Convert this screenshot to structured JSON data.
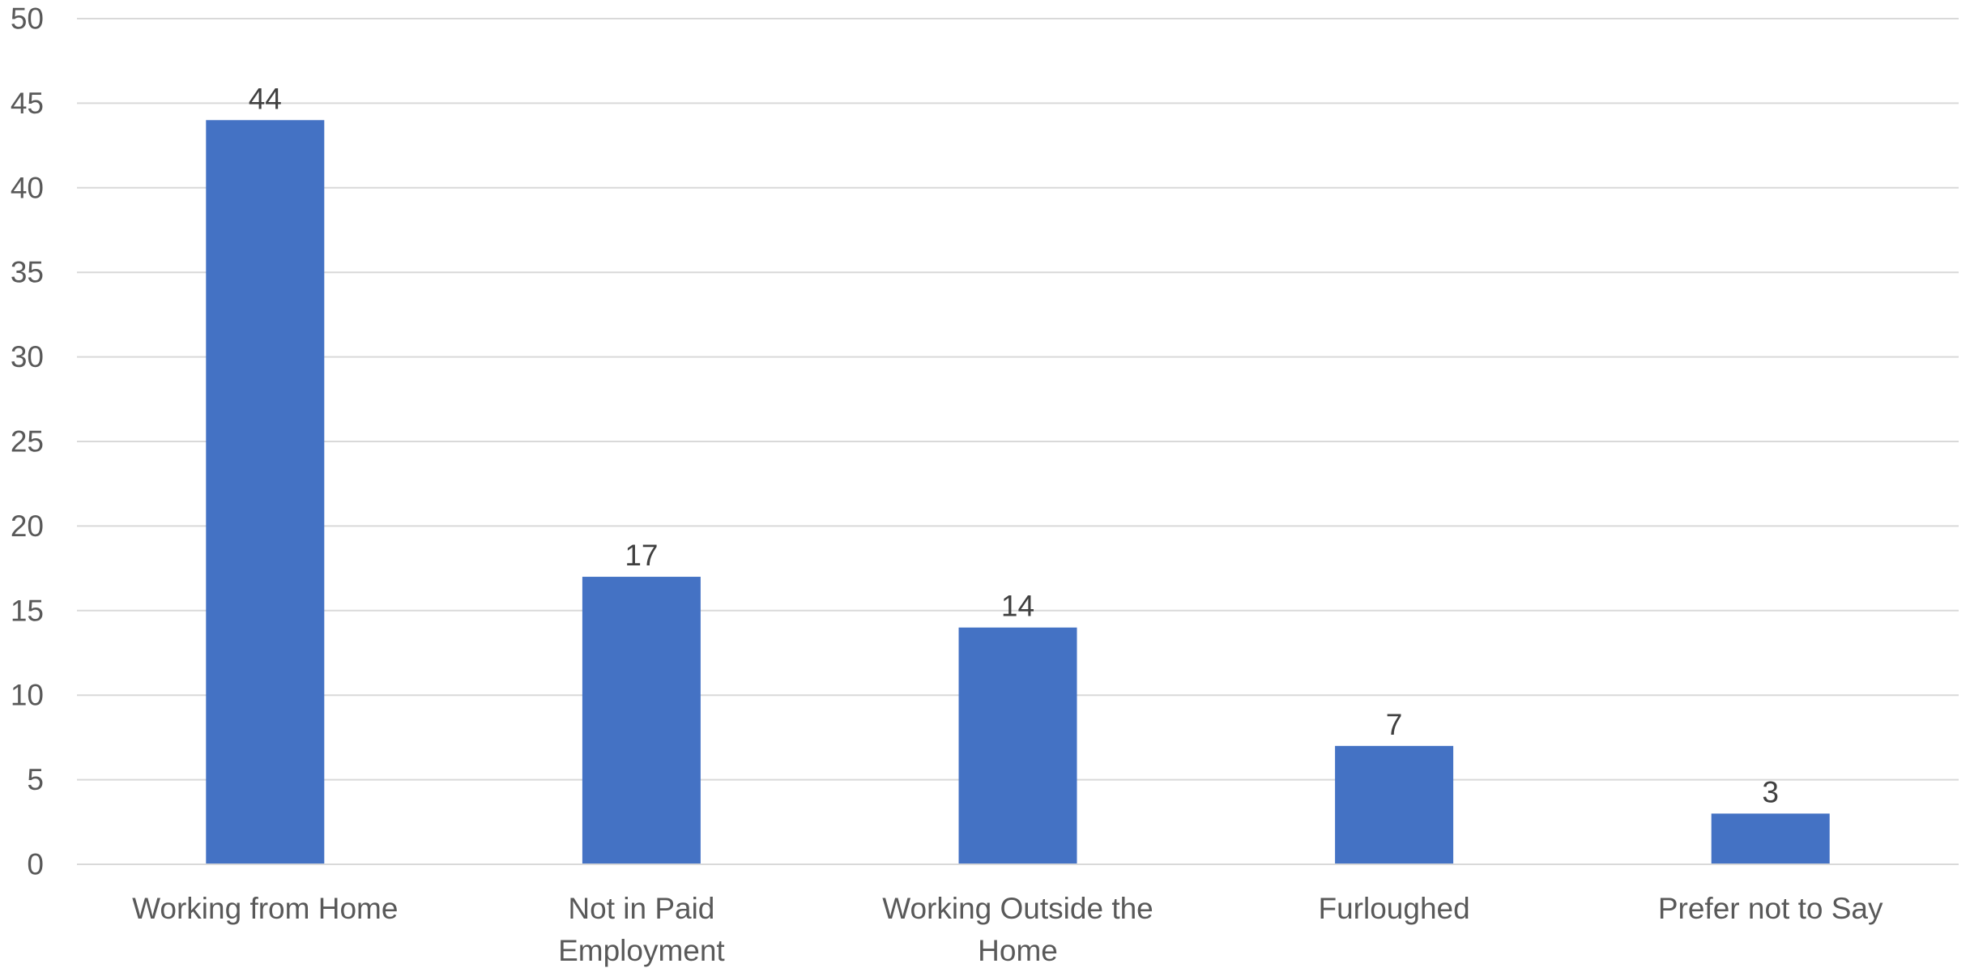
{
  "chart_data": {
    "type": "bar",
    "title": "",
    "xlabel": "",
    "ylabel": "",
    "categories": [
      "Working from Home",
      "Not in Paid Employment",
      "Working Outside the Home",
      "Furloughed",
      "Prefer not to Say"
    ],
    "values": [
      44,
      17,
      14,
      7,
      3
    ],
    "ylim": [
      0,
      50
    ],
    "yticks": [
      0,
      5,
      10,
      15,
      20,
      25,
      30,
      35,
      40,
      45,
      50
    ],
    "grid": true,
    "legend": "none",
    "data_labels": true,
    "bar_color": "#4472C4"
  }
}
